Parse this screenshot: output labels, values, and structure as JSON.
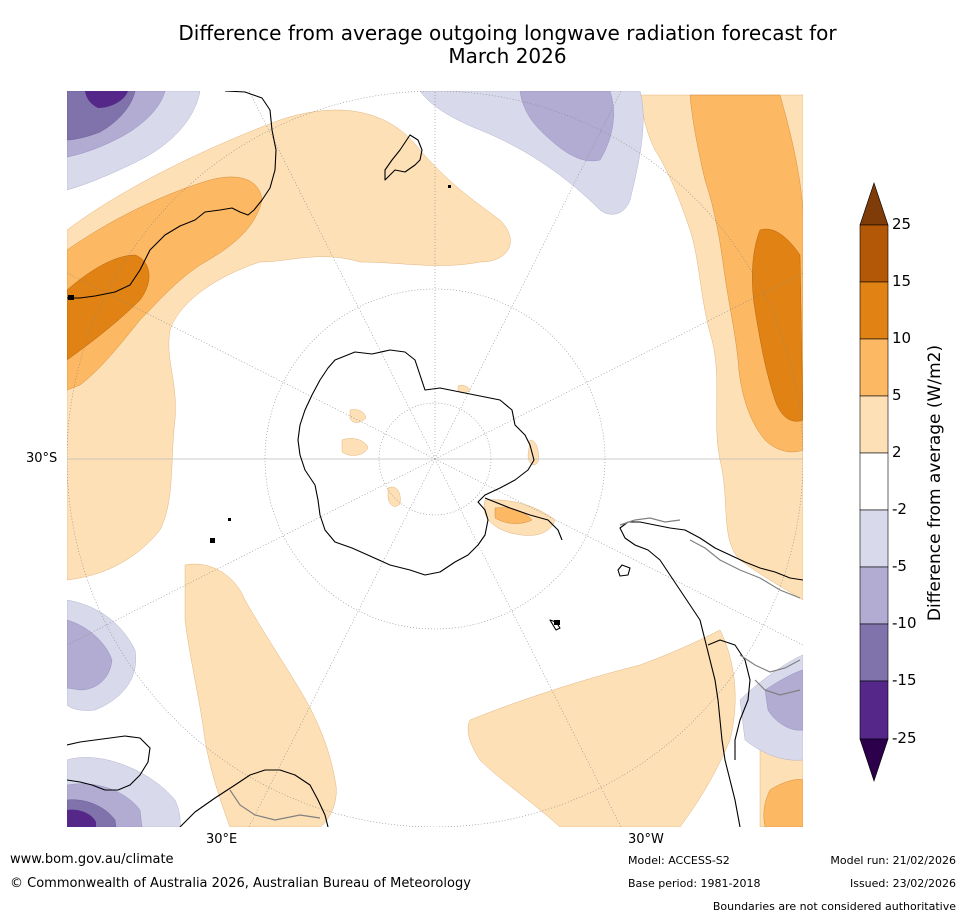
{
  "title": {
    "line1": "Difference from average outgoing longwave radiation forecast for",
    "line2": "March 2026"
  },
  "map": {
    "projection": "South polar stereographic",
    "lat_label": "30°S",
    "lon_labels": [
      "30°E",
      "30°W"
    ]
  },
  "colorbar": {
    "label": "Difference from average (W/m2)",
    "ticks": [
      "25",
      "15",
      "10",
      "5",
      "2",
      "-2",
      "-5",
      "-10",
      "-15",
      "-25"
    ],
    "colors": [
      "#7f3b08",
      "#b35806",
      "#e08214",
      "#fdb863",
      "#fee0b6",
      "#ffffff",
      "#d8daeb",
      "#b2abd2",
      "#8073ac",
      "#542788",
      "#2d004b"
    ]
  },
  "footer": {
    "website": "www.bom.gov.au/climate",
    "copyright": "© Commonwealth of Australia 2026, Australian Bureau of Meteorology",
    "model": "Model: ACCESS-S2",
    "base_period": "Base period: 1981-2018",
    "model_run": "Model run: 21/02/2026",
    "issued": "Issued: 23/02/2026",
    "disclaimer": "Boundaries are not considered authoritative"
  }
}
